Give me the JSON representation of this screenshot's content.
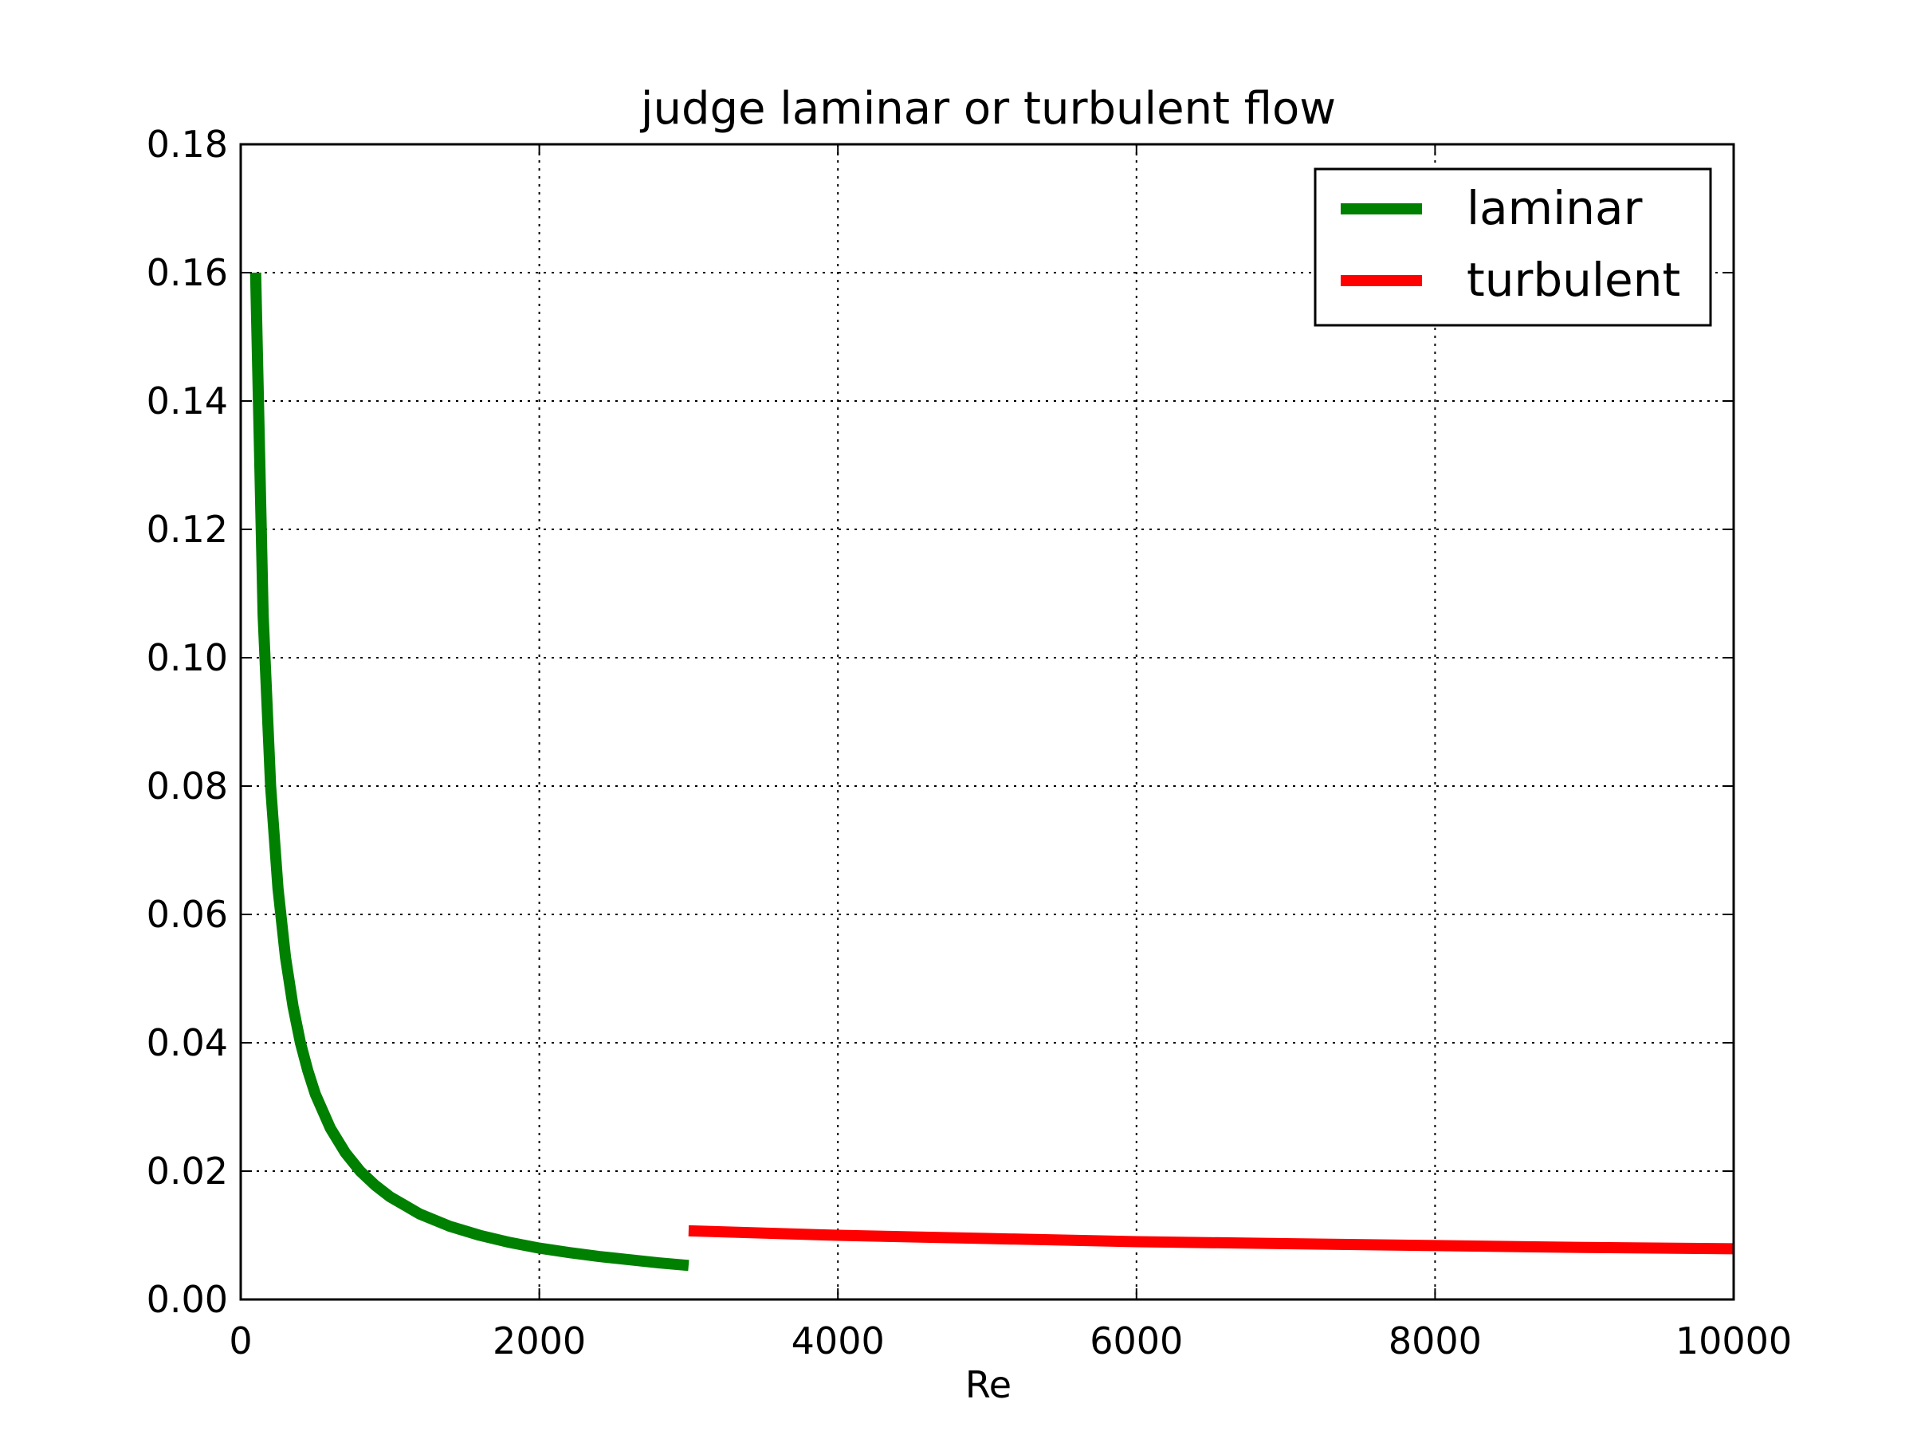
{
  "chart_data": {
    "type": "line",
    "title": "judge laminar or turbulent flow",
    "xlabel": "Re",
    "ylabel": "",
    "xlim": [
      0,
      10000
    ],
    "ylim": [
      0,
      0.18
    ],
    "xticks": [
      0,
      2000,
      4000,
      6000,
      8000,
      10000
    ],
    "xtick_labels": [
      "0",
      "2000",
      "4000",
      "6000",
      "8000",
      "10000"
    ],
    "yticks": [
      0,
      0.02,
      0.04,
      0.06,
      0.08,
      0.1,
      0.12,
      0.14,
      0.16,
      0.18
    ],
    "ytick_labels": [
      "0.00",
      "0.02",
      "0.04",
      "0.06",
      "0.08",
      "0.10",
      "0.12",
      "0.14",
      "0.16",
      "0.18"
    ],
    "grid": true,
    "legend_position": "top-right",
    "series": [
      {
        "name": "laminar",
        "color": "#008000",
        "x": [
          100,
          150,
          200,
          250,
          300,
          350,
          400,
          450,
          500,
          600,
          700,
          800,
          900,
          1000,
          1200,
          1400,
          1600,
          1800,
          2000,
          2200,
          2400,
          2600,
          2800,
          3000
        ],
        "y": [
          0.16,
          0.1067,
          0.08,
          0.064,
          0.0533,
          0.0457,
          0.04,
          0.0356,
          0.032,
          0.0267,
          0.0229,
          0.02,
          0.0178,
          0.016,
          0.0133,
          0.0114,
          0.01,
          0.0089,
          0.008,
          0.0073,
          0.0067,
          0.0062,
          0.0057,
          0.0053
        ]
      },
      {
        "name": "turbulent",
        "color": "#ff0000",
        "x": [
          3000,
          4000,
          5000,
          6000,
          7000,
          8000,
          9000,
          10000
        ],
        "y": [
          0.0107,
          0.01,
          0.0095,
          0.009,
          0.0087,
          0.0084,
          0.0081,
          0.0079
        ]
      }
    ]
  }
}
